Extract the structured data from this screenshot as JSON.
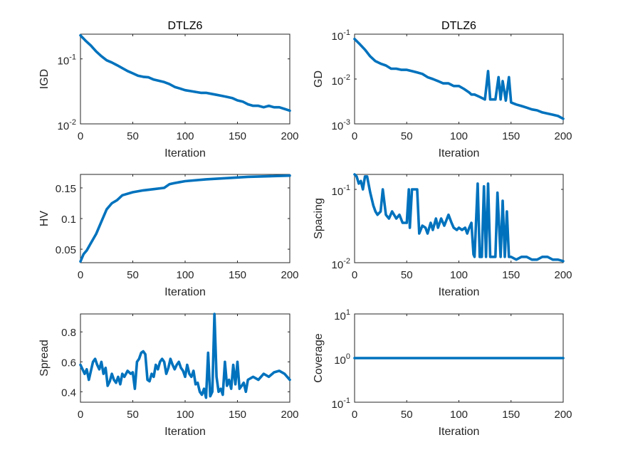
{
  "chart_data": [
    {
      "type": "line",
      "title": "DTLZ6",
      "xlabel": "Iteration",
      "ylabel": "IGD",
      "yscale": "log",
      "xlim": [
        0,
        200
      ],
      "ylim": [
        0.01,
        0.24
      ],
      "xticks": [
        "0",
        "50",
        "100",
        "150",
        "200"
      ],
      "yticks": [
        {
          "v": 0.01,
          "base": "10",
          "exp": "-2"
        },
        {
          "v": 0.1,
          "base": "10",
          "exp": "-1"
        }
      ],
      "color": "#0072BD",
      "x": [
        0,
        5,
        10,
        15,
        20,
        25,
        30,
        35,
        40,
        45,
        50,
        55,
        60,
        65,
        70,
        75,
        80,
        85,
        90,
        95,
        100,
        105,
        110,
        115,
        120,
        125,
        130,
        135,
        140,
        145,
        150,
        155,
        160,
        165,
        170,
        175,
        180,
        185,
        190,
        195,
        200
      ],
      "y": [
        0.23,
        0.19,
        0.16,
        0.13,
        0.11,
        0.095,
        0.088,
        0.08,
        0.072,
        0.065,
        0.06,
        0.055,
        0.053,
        0.052,
        0.048,
        0.046,
        0.044,
        0.041,
        0.037,
        0.035,
        0.033,
        0.032,
        0.031,
        0.03,
        0.03,
        0.029,
        0.028,
        0.027,
        0.026,
        0.025,
        0.023,
        0.022,
        0.02,
        0.019,
        0.019,
        0.018,
        0.019,
        0.018,
        0.018,
        0.017,
        0.016
      ]
    },
    {
      "type": "line",
      "title": "DTLZ6",
      "xlabel": "Iteration",
      "ylabel": "GD",
      "yscale": "log",
      "xlim": [
        0,
        200
      ],
      "ylim": [
        0.001,
        0.1
      ],
      "xticks": [
        "0",
        "50",
        "100",
        "150",
        "200"
      ],
      "yticks": [
        {
          "v": 0.001,
          "base": "10",
          "exp": "-3"
        },
        {
          "v": 0.01,
          "base": "10",
          "exp": "-2"
        },
        {
          "v": 0.1,
          "base": "10",
          "exp": "-1"
        }
      ],
      "color": "#0072BD",
      "x": [
        0,
        5,
        10,
        15,
        20,
        25,
        30,
        35,
        40,
        45,
        50,
        55,
        60,
        65,
        70,
        75,
        80,
        85,
        90,
        95,
        100,
        105,
        110,
        112,
        115,
        120,
        125,
        128,
        130,
        135,
        138,
        140,
        142,
        145,
        148,
        150,
        155,
        160,
        165,
        170,
        175,
        180,
        185,
        190,
        195,
        200
      ],
      "y": [
        0.078,
        0.06,
        0.045,
        0.032,
        0.025,
        0.022,
        0.02,
        0.017,
        0.017,
        0.016,
        0.016,
        0.015,
        0.014,
        0.013,
        0.011,
        0.01,
        0.009,
        0.008,
        0.008,
        0.007,
        0.007,
        0.006,
        0.005,
        0.0045,
        0.0045,
        0.004,
        0.0035,
        0.015,
        0.0035,
        0.0035,
        0.011,
        0.0035,
        0.009,
        0.0033,
        0.011,
        0.003,
        0.0027,
        0.0025,
        0.0023,
        0.0021,
        0.002,
        0.0018,
        0.0017,
        0.0016,
        0.0015,
        0.0013
      ]
    },
    {
      "type": "line",
      "xlabel": "Iteration",
      "ylabel": "HV",
      "yscale": "linear",
      "xlim": [
        0,
        200
      ],
      "ylim": [
        0.028,
        0.172
      ],
      "xticks": [
        "0",
        "50",
        "100",
        "150",
        "200"
      ],
      "yticks": [
        {
          "v": 0.05,
          "label": "0.05"
        },
        {
          "v": 0.1,
          "label": "0.1"
        },
        {
          "v": 0.15,
          "label": "0.15"
        }
      ],
      "color": "#0072BD",
      "x": [
        0,
        3,
        6,
        10,
        15,
        20,
        25,
        30,
        35,
        40,
        50,
        60,
        70,
        80,
        85,
        90,
        100,
        120,
        140,
        160,
        180,
        200
      ],
      "y": [
        0.03,
        0.042,
        0.048,
        0.06,
        0.075,
        0.095,
        0.115,
        0.125,
        0.13,
        0.138,
        0.143,
        0.146,
        0.148,
        0.15,
        0.156,
        0.158,
        0.161,
        0.164,
        0.166,
        0.168,
        0.169,
        0.17
      ]
    },
    {
      "type": "line",
      "xlabel": "Iteration",
      "ylabel": "Spacing",
      "yscale": "log",
      "xlim": [
        0,
        200
      ],
      "ylim": [
        0.01,
        0.16
      ],
      "xticks": [
        "0",
        "50",
        "100",
        "150",
        "200"
      ],
      "yticks": [
        {
          "v": 0.01,
          "base": "10",
          "exp": "-2"
        },
        {
          "v": 0.1,
          "base": "10",
          "exp": "-1"
        }
      ],
      "color": "#0072BD",
      "x": [
        0,
        2,
        4,
        6,
        8,
        10,
        12,
        15,
        18,
        20,
        22,
        25,
        27,
        30,
        33,
        36,
        40,
        43,
        46,
        50,
        52,
        53,
        55,
        57,
        60,
        62,
        65,
        68,
        70,
        73,
        75,
        78,
        80,
        83,
        86,
        90,
        93,
        95,
        98,
        100,
        103,
        106,
        108,
        110,
        112,
        114,
        115,
        118,
        120,
        122,
        124,
        126,
        128,
        130,
        132,
        135,
        137,
        140,
        142,
        144,
        146,
        148,
        150,
        155,
        160,
        165,
        170,
        175,
        180,
        185,
        190,
        195,
        200
      ],
      "y": [
        0.16,
        0.15,
        0.12,
        0.13,
        0.1,
        0.15,
        0.15,
        0.09,
        0.06,
        0.05,
        0.045,
        0.05,
        0.1,
        0.045,
        0.04,
        0.05,
        0.04,
        0.045,
        0.035,
        0.035,
        0.1,
        0.03,
        0.1,
        0.1,
        0.1,
        0.025,
        0.032,
        0.03,
        0.025,
        0.035,
        0.028,
        0.04,
        0.03,
        0.04,
        0.032,
        0.045,
        0.035,
        0.03,
        0.028,
        0.03,
        0.028,
        0.03,
        0.025,
        0.03,
        0.035,
        0.013,
        0.012,
        0.12,
        0.012,
        0.012,
        0.11,
        0.012,
        0.12,
        0.012,
        0.012,
        0.012,
        0.09,
        0.012,
        0.07,
        0.012,
        0.05,
        0.012,
        0.012,
        0.011,
        0.012,
        0.012,
        0.011,
        0.011,
        0.012,
        0.012,
        0.011,
        0.011,
        0.0105
      ]
    },
    {
      "type": "line",
      "xlabel": "Iteration",
      "ylabel": "Spread",
      "yscale": "linear",
      "xlim": [
        0,
        200
      ],
      "ylim": [
        0.33,
        0.92
      ],
      "xticks": [
        "0",
        "50",
        "100",
        "150",
        "200"
      ],
      "yticks": [
        {
          "v": 0.4,
          "label": "0.4"
        },
        {
          "v": 0.6,
          "label": "0.6"
        },
        {
          "v": 0.8,
          "label": "0.8"
        }
      ],
      "color": "#0072BD",
      "x": [
        0,
        2,
        4,
        6,
        8,
        10,
        12,
        14,
        16,
        18,
        20,
        22,
        24,
        25,
        26,
        28,
        30,
        32,
        34,
        36,
        38,
        40,
        42,
        45,
        48,
        50,
        52,
        54,
        56,
        58,
        60,
        62,
        64,
        66,
        68,
        70,
        72,
        74,
        76,
        78,
        80,
        82,
        84,
        86,
        88,
        90,
        92,
        94,
        96,
        98,
        100,
        102,
        104,
        106,
        108,
        110,
        112,
        114,
        116,
        118,
        120,
        122,
        124,
        126,
        128,
        130,
        132,
        134,
        136,
        138,
        140,
        142,
        144,
        146,
        148,
        150,
        152,
        154,
        156,
        158,
        160,
        165,
        170,
        175,
        180,
        185,
        190,
        195,
        200
      ],
      "y": [
        0.58,
        0.55,
        0.52,
        0.55,
        0.48,
        0.54,
        0.6,
        0.62,
        0.58,
        0.55,
        0.6,
        0.52,
        0.56,
        0.5,
        0.44,
        0.47,
        0.52,
        0.48,
        0.46,
        0.5,
        0.45,
        0.52,
        0.5,
        0.54,
        0.52,
        0.53,
        0.42,
        0.6,
        0.62,
        0.66,
        0.67,
        0.65,
        0.48,
        0.47,
        0.52,
        0.5,
        0.58,
        0.55,
        0.6,
        0.62,
        0.6,
        0.52,
        0.56,
        0.62,
        0.58,
        0.55,
        0.58,
        0.6,
        0.56,
        0.54,
        0.5,
        0.58,
        0.52,
        0.5,
        0.54,
        0.45,
        0.46,
        0.4,
        0.38,
        0.42,
        0.36,
        0.66,
        0.37,
        0.4,
        0.92,
        0.5,
        0.4,
        0.42,
        0.38,
        0.6,
        0.44,
        0.48,
        0.42,
        0.58,
        0.45,
        0.6,
        0.42,
        0.44,
        0.46,
        0.4,
        0.48,
        0.5,
        0.48,
        0.52,
        0.5,
        0.53,
        0.54,
        0.52,
        0.48
      ]
    },
    {
      "type": "line",
      "xlabel": "Iteration",
      "ylabel": "Coverage",
      "yscale": "log",
      "xlim": [
        0,
        200
      ],
      "ylim": [
        0.1,
        10
      ],
      "xticks": [
        "0",
        "50",
        "100",
        "150",
        "200"
      ],
      "yticks": [
        {
          "v": 0.1,
          "base": "10",
          "exp": "-1"
        },
        {
          "v": 1,
          "base": "10",
          "exp": "0"
        },
        {
          "v": 10,
          "base": "10",
          "exp": "1"
        }
      ],
      "color": "#0072BD",
      "x": [
        0,
        200
      ],
      "y": [
        1,
        1
      ]
    }
  ]
}
